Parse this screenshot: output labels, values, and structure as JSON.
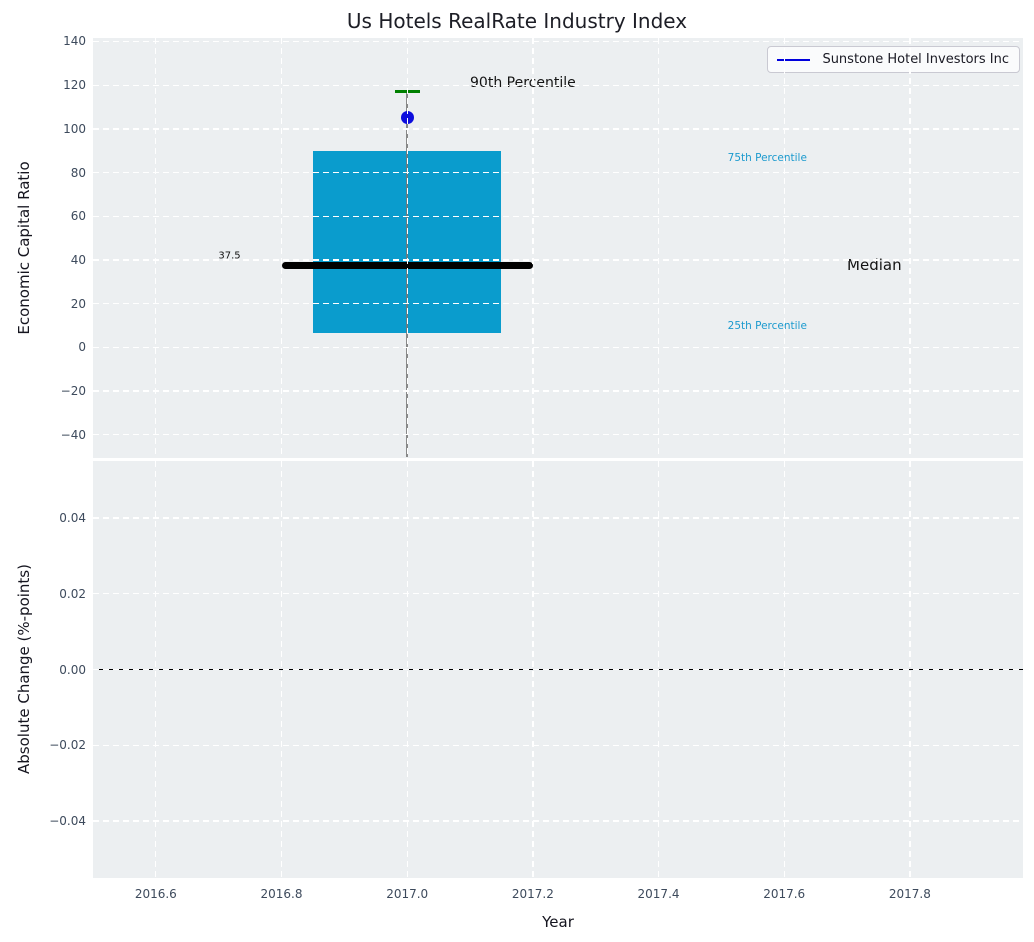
{
  "title": "Us Hotels RealRate Industry Index",
  "colors": {
    "plot_background": "#eceff1",
    "grid": "#ffffff",
    "box_fill": "#0a9ccd",
    "median_line": "#000000",
    "whisker": "#777777",
    "percentile_90_cap": "#008000",
    "company_dot": "#0d0ddd",
    "legend_line": "#0000dd",
    "tick_label": "#3d4a5c",
    "percentile_annotation": "#1b9ace"
  },
  "chart_data": [
    {
      "type": "box",
      "title": "Us Hotels RealRate Industry Index",
      "ylabel": "Economic Capital Ratio",
      "grid": true,
      "xlim": [
        2016.5,
        2017.98
      ],
      "ylim": [
        -50.6,
        141.6
      ],
      "xticks": [
        2016.6,
        2016.8,
        2017.0,
        2017.2,
        2017.4,
        2017.6,
        2017.8
      ],
      "xticklabels": [],
      "yticks": [
        140,
        120,
        100,
        80,
        60,
        40,
        20,
        0,
        -20,
        -40
      ],
      "yticklabels": [
        "140",
        "120",
        "100",
        "80",
        "60",
        "40",
        "20",
        "0",
        "−20",
        "−40"
      ],
      "legend": {
        "position": "upper right",
        "label": "Sunstone Hotel Investors Inc"
      },
      "box": {
        "x": 2017.0,
        "box_halfwidth": 0.15,
        "median_halfwidth": 0.2,
        "cap_halfwidth": 0.02,
        "whisker_low": -50,
        "q25": 6.5,
        "median": 37.5,
        "q75": 90,
        "p90": 117,
        "company_point": 105.4
      },
      "annotations": [
        {
          "text": "90th Percentile",
          "x": 2017.1,
          "y": 121,
          "color": "#141414",
          "size": 14,
          "align": "left"
        },
        {
          "text": "75th Percentile",
          "x": 2017.51,
          "y": 86.5,
          "color": "#1b9ace",
          "size": 10.5,
          "align": "left"
        },
        {
          "text": "Median",
          "x": 2017.7,
          "y": 37.5,
          "color": "#141414",
          "size": 15,
          "align": "left"
        },
        {
          "text": "25th Percentile",
          "x": 2017.51,
          "y": 10,
          "color": "#1b9ace",
          "size": 10.5,
          "align": "left"
        },
        {
          "text": "37.5",
          "x": 2016.735,
          "y": 42,
          "color": "#141414",
          "size": 10,
          "align": "right"
        }
      ]
    },
    {
      "type": "line",
      "ylabel": "Absolute Change (%-points)",
      "xlabel": "Year",
      "grid": true,
      "xlim": [
        2016.5,
        2017.98
      ],
      "ylim": [
        -0.055,
        0.055
      ],
      "xticks": [
        2016.6,
        2016.8,
        2017.0,
        2017.2,
        2017.4,
        2017.6,
        2017.8
      ],
      "xticklabels": [
        "2016.6",
        "2016.8",
        "2017.0",
        "2017.2",
        "2017.4",
        "2017.6",
        "2017.8"
      ],
      "yticks": [
        0.04,
        0.02,
        0.0,
        -0.02,
        -0.04
      ],
      "yticklabels": [
        "0.04",
        "0.02",
        "0.00",
        "−0.02",
        "−0.04"
      ],
      "zero_line": 0.0
    }
  ]
}
